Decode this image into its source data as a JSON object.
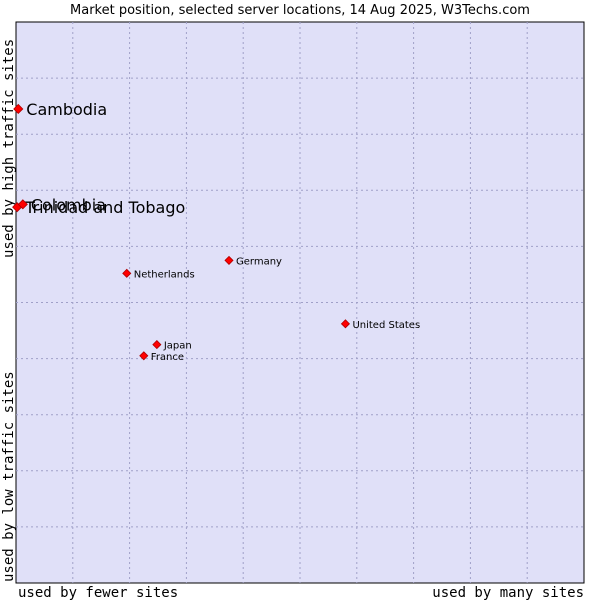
{
  "chart_data": {
    "type": "scatter",
    "title": "Market position, selected server locations, 14 Aug 2025, W3Techs.com",
    "xlabel_left": "used by fewer sites",
    "xlabel_right": "used by many sites",
    "ylabel_bottom": "used by low traffic sites",
    "ylabel_top": "used by high traffic sites",
    "grid": true,
    "xlim": [
      0,
      100
    ],
    "ylim": [
      0,
      100
    ],
    "points": [
      {
        "label": "Cambodia",
        "x": 0.4,
        "y": 84.5,
        "size": "large"
      },
      {
        "label": "Trinidad and Tobago",
        "x": 0.2,
        "y": 67.0,
        "size": "large"
      },
      {
        "label": "Colombia",
        "x": 1.2,
        "y": 67.5,
        "size": "large"
      },
      {
        "label": "Germany",
        "x": 37.5,
        "y": 57.5,
        "size": "small"
      },
      {
        "label": "Netherlands",
        "x": 19.5,
        "y": 55.2,
        "size": "small"
      },
      {
        "label": "United States",
        "x": 58.0,
        "y": 46.2,
        "size": "small"
      },
      {
        "label": "Japan",
        "x": 24.8,
        "y": 42.5,
        "size": "small"
      },
      {
        "label": "France",
        "x": 22.5,
        "y": 40.5,
        "size": "small"
      }
    ],
    "colors": {
      "plot_bg": "#e0e0f8",
      "marker": "#ff0000",
      "marker_edge": "#b00000",
      "grid": "#a0a0c8"
    }
  }
}
